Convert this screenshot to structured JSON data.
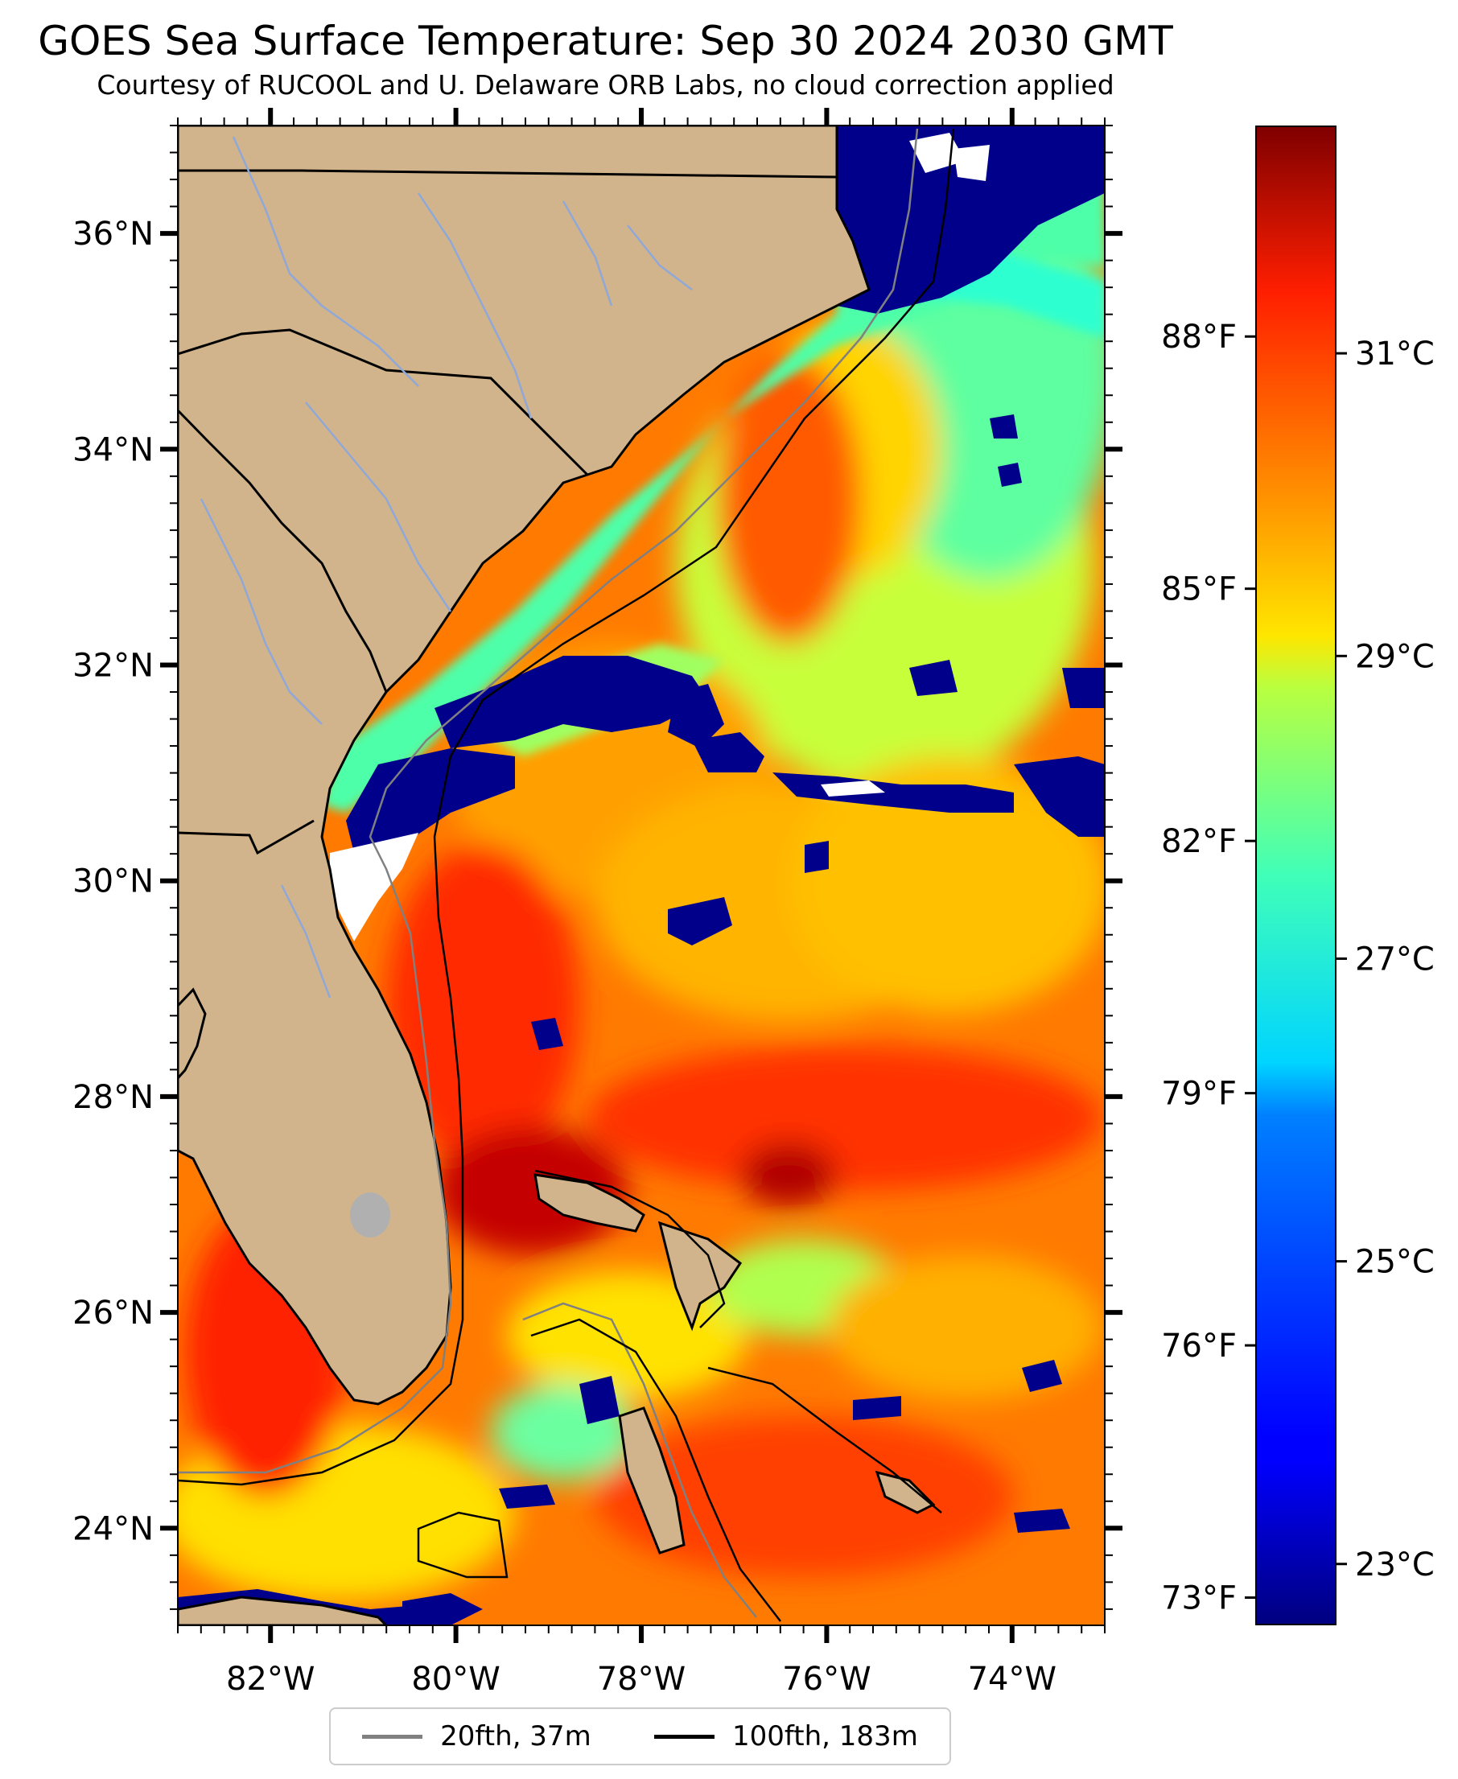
{
  "title": "GOES Sea Surface Temperature: Sep 30 2024 2030 GMT",
  "subtitle": "Courtesy of RUCOOL and U. Delaware ORB Labs, no cloud correction applied",
  "map": {
    "lon_range": [
      -83,
      -73
    ],
    "lat_range": [
      23.1,
      37
    ],
    "lat_ticks": [
      {
        "lat": 36,
        "label": "36°N"
      },
      {
        "lat": 34,
        "label": "34°N"
      },
      {
        "lat": 32,
        "label": "32°N"
      },
      {
        "lat": 30,
        "label": "30°N"
      },
      {
        "lat": 28,
        "label": "28°N"
      },
      {
        "lat": 26,
        "label": "26°N"
      },
      {
        "lat": 24,
        "label": "24°N"
      }
    ],
    "lon_ticks": [
      {
        "lon": -82,
        "label": "82°W"
      },
      {
        "lon": -80,
        "label": "80°W"
      },
      {
        "lon": -78,
        "label": "78°W"
      },
      {
        "lon": -76,
        "label": "76°W"
      },
      {
        "lon": -74,
        "label": "74°W"
      }
    ],
    "colors": {
      "land": "#d2b48c",
      "cloud_mask": "#00008b",
      "no_data": "#ffffff",
      "lake": "#b0b0b0",
      "river": "#8fa8d8"
    }
  },
  "colorbar": {
    "colormap": "jet",
    "celsius_range": [
      22.6,
      32.5
    ],
    "celsius_ticks": [
      {
        "value": 31,
        "label": "31°C"
      },
      {
        "value": 29,
        "label": "29°C"
      },
      {
        "value": 27,
        "label": "27°C"
      },
      {
        "value": 25,
        "label": "25°C"
      },
      {
        "value": 23,
        "label": "23°C"
      }
    ],
    "fahrenheit_ticks": [
      {
        "value": 88,
        "label": "88°F"
      },
      {
        "value": 85,
        "label": "85°F"
      },
      {
        "value": 82,
        "label": "82°F"
      },
      {
        "value": 79,
        "label": "79°F"
      },
      {
        "value": 76,
        "label": "76°F"
      },
      {
        "value": 73,
        "label": "73°F"
      }
    ]
  },
  "legend": {
    "items": [
      {
        "label": "20fth, 37m",
        "color": "#808080"
      },
      {
        "label": "100fth, 183m",
        "color": "#000000"
      }
    ]
  }
}
